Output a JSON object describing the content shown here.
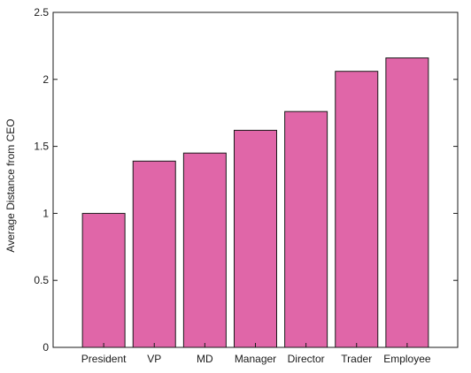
{
  "chart_data": {
    "type": "bar",
    "title": "",
    "xlabel": "",
    "ylabel": "Average Distance from CEO",
    "categories": [
      "President",
      "VP",
      "MD",
      "Manager",
      "Director",
      "Trader",
      "Employee"
    ],
    "values": [
      1.0,
      1.39,
      1.45,
      1.62,
      1.76,
      2.06,
      2.16
    ],
    "ylim": [
      0,
      2.5
    ],
    "yticks": [
      0,
      0.5,
      1,
      1.5,
      2,
      2.5
    ],
    "ytick_labels": [
      "0",
      "0.5",
      "1",
      "1.5",
      "2",
      "2.5"
    ],
    "grid": false,
    "legend": "none",
    "bar_color": "#e066a8",
    "bar_edge_color": "#1a1a1a"
  }
}
